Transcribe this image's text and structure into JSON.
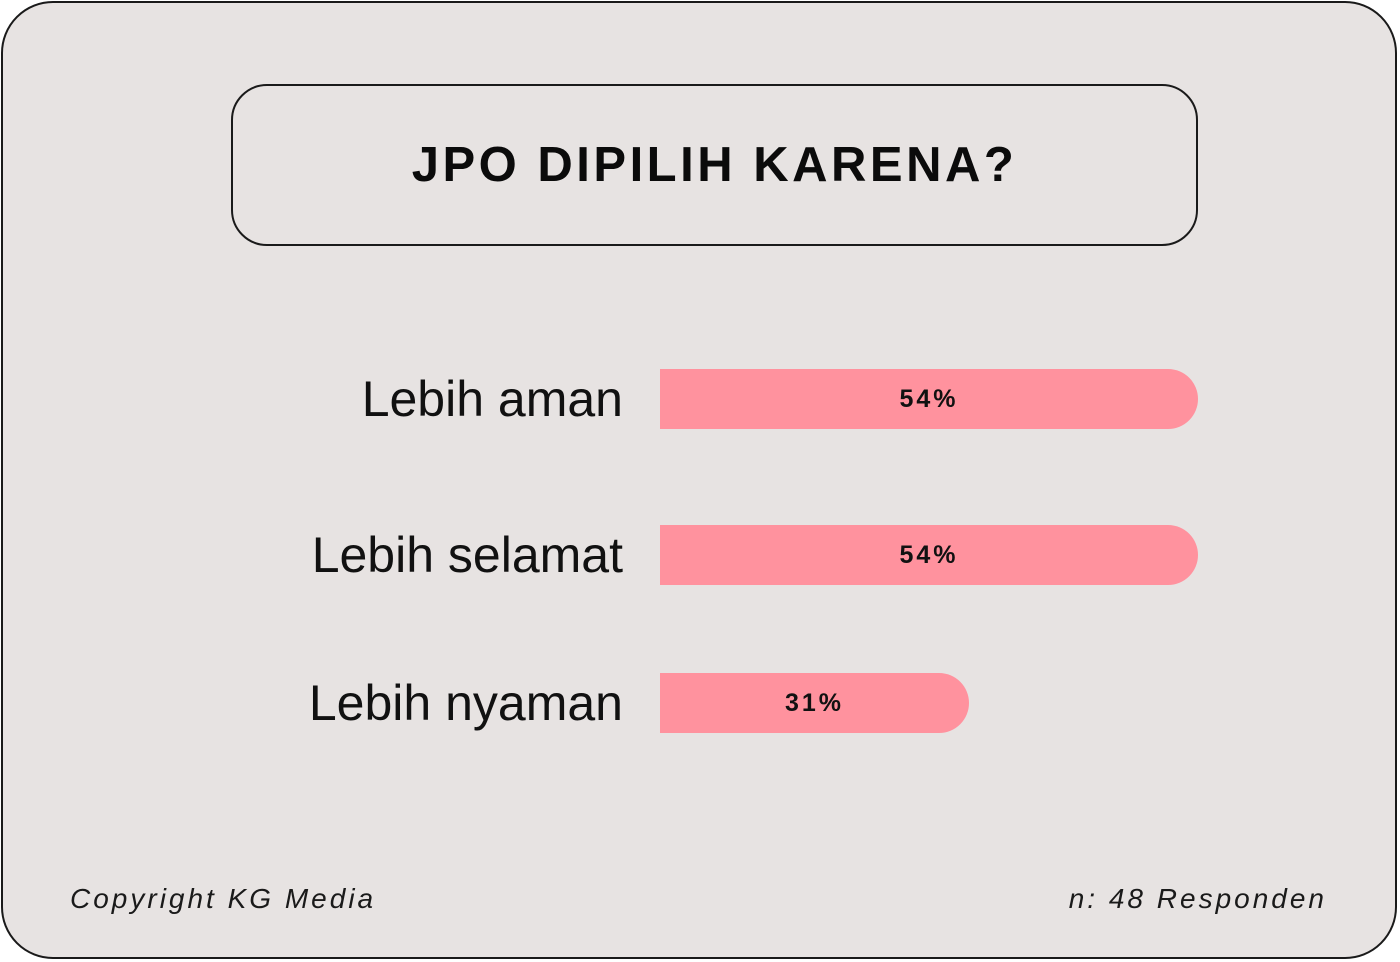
{
  "chart_data": {
    "type": "bar",
    "orientation": "horizontal",
    "title": "JPO DIPILIH KARENA?",
    "categories": [
      "Lebih aman",
      "Lebih selamat",
      "Lebih nyaman"
    ],
    "values": [
      54,
      54,
      31
    ],
    "value_labels": [
      "54%",
      "54%",
      "31%"
    ],
    "unit": "%",
    "xlabel": "",
    "ylabel": "",
    "grid": false,
    "bar_color": "#ff929e"
  },
  "footer": {
    "copyright": "Copyright KG Media",
    "sample": "n: 48 Responden"
  },
  "colors": {
    "background": "#e7e3e2",
    "border": "#1a1a1a",
    "text": "#111111"
  }
}
